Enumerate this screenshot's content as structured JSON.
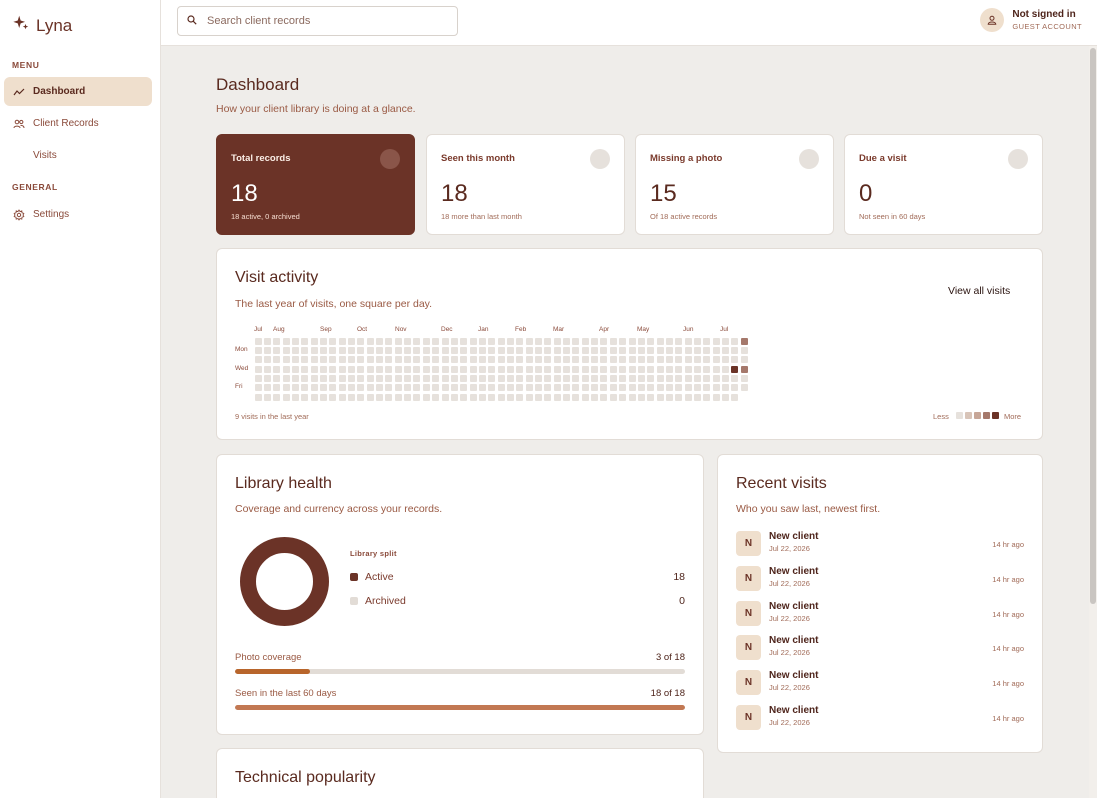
{
  "brand": {
    "name": "Lyna",
    "icon": "sparkle-icon"
  },
  "sidebar": {
    "menu_label": "MENU",
    "general_label": "GENERAL",
    "items": [
      {
        "label": "Dashboard",
        "icon": "trend-icon"
      },
      {
        "label": "Client Records",
        "icon": "users-icon"
      },
      {
        "label": "Visits",
        "icon": ""
      },
      {
        "label": "Settings",
        "icon": "gear-icon"
      }
    ]
  },
  "search": {
    "placeholder": "Search client records"
  },
  "user": {
    "name": "Not signed in",
    "account": "GUEST ACCOUNT"
  },
  "page": {
    "title": "Dashboard",
    "subtitle": "How your client library is doing at a glance."
  },
  "stats": [
    {
      "label": "Total records",
      "value": "18",
      "note": "18 active, 0 archived"
    },
    {
      "label": "Seen this month",
      "value": "18",
      "note": "18 more than last month"
    },
    {
      "label": "Missing a photo",
      "value": "15",
      "note": "Of 18 active records"
    },
    {
      "label": "Due a visit",
      "value": "0",
      "note": "Not seen in 60 days"
    }
  ],
  "activity": {
    "title": "Visit activity",
    "subtitle": "The last year of visits, one square per day.",
    "view_all": "View all visits",
    "months": [
      "Jul",
      "Aug",
      "Sep",
      "Oct",
      "Nov",
      "Dec",
      "Jan",
      "Feb",
      "Mar",
      "Apr",
      "May",
      "Jun",
      "Jul"
    ],
    "days": [
      "Mon",
      "Wed",
      "Fri"
    ],
    "footer": "9 visits in the last year",
    "less": "Less",
    "more": "More",
    "colors": [
      "#e6e1dc",
      "#d8c4b8",
      "#c7a697",
      "#a5786b",
      "#8a5549",
      "#6b3327"
    ]
  },
  "health": {
    "title": "Library health",
    "subtitle": "Coverage and currency across your records.",
    "split_title": "Library split",
    "split": [
      {
        "label": "Active",
        "value": "18",
        "color": "#6b3327"
      },
      {
        "label": "Archived",
        "value": "0",
        "color": "#e2dcd6"
      }
    ],
    "progress": [
      {
        "label": "Photo coverage",
        "value": "3 of 18",
        "fraction": 0.1667,
        "color": "#b8652b"
      },
      {
        "label": "Seen in the last 60 days",
        "value": "18 of 18",
        "fraction": 1.0,
        "color": "#c27853"
      }
    ]
  },
  "recent": {
    "title": "Recent visits",
    "subtitle": "Who you saw last, newest first.",
    "items": [
      {
        "initial": "N",
        "name": "New client",
        "date": "Jul 22, 2026",
        "ago": "14 hr ago"
      },
      {
        "initial": "N",
        "name": "New client",
        "date": "Jul 22, 2026",
        "ago": "14 hr ago"
      },
      {
        "initial": "N",
        "name": "New client",
        "date": "Jul 22, 2026",
        "ago": "14 hr ago"
      },
      {
        "initial": "N",
        "name": "New client",
        "date": "Jul 22, 2026",
        "ago": "14 hr ago"
      },
      {
        "initial": "N",
        "name": "New client",
        "date": "Jul 22, 2026",
        "ago": "14 hr ago"
      },
      {
        "initial": "N",
        "name": "New client",
        "date": "Jul 22, 2026",
        "ago": "14 hr ago"
      }
    ]
  },
  "technical": {
    "title": "Technical popularity"
  }
}
